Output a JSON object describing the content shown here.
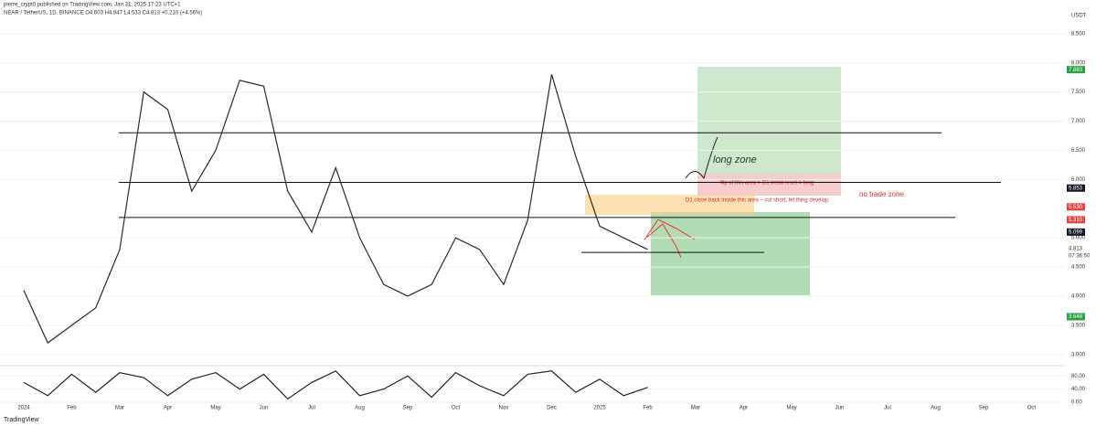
{
  "header": {
    "publisher": "pierre_crypt0 published on TradingView.com, Jan 31, 2025 17:23 UTC+1",
    "symbol": "NEAR / TetherUS, 1D, BINANCE  O4.603  H4.847  L4.533  C4.813  +0.210 (+4.56%)"
  },
  "footer": "TradingView",
  "chart_data": [
    {
      "type": "line",
      "currency": "USDT",
      "countdown": "07:36:50",
      "categories": [
        "2024",
        null,
        "Feb",
        null,
        "Mar",
        null,
        "Apr",
        null,
        "May",
        null,
        "Jun",
        null,
        "Jul",
        null,
        "Aug",
        null,
        "Sep",
        null,
        "Oct",
        null,
        "Nov",
        null,
        "Dec",
        null,
        "2025",
        null,
        "Feb",
        null,
        "Mar",
        null,
        "Apr",
        null,
        "May",
        null,
        "Jun",
        null,
        "Jul",
        null,
        "Aug",
        null,
        "Sep",
        null,
        "Oct",
        null
      ],
      "values": [
        4.1,
        3.2,
        3.5,
        3.8,
        4.8,
        7.5,
        7.2,
        5.8,
        6.5,
        7.7,
        7.6,
        5.8,
        5.1,
        6.2,
        5.0,
        4.2,
        4.0,
        4.2,
        5.0,
        4.8,
        4.2,
        5.3,
        7.8,
        6.4,
        5.2,
        5.0,
        4.8,
        null,
        null,
        null,
        null,
        null,
        null,
        null,
        null,
        null,
        null,
        null,
        null,
        null,
        null,
        null,
        null,
        null
      ],
      "color": "#2b2b2b",
      "ylim": [
        2.84,
        8.92
      ],
      "yticks": [
        {
          "value": 3.0,
          "label": "3.000"
        },
        {
          "value": 3.5,
          "label": "3.500"
        },
        {
          "value": 4.0,
          "label": "4.000"
        },
        {
          "value": 4.5,
          "label": "4.500"
        },
        {
          "value": 5.0,
          "label": "5.000"
        },
        {
          "value": 6.0,
          "label": "6.000"
        },
        {
          "value": 6.5,
          "label": "6.500"
        },
        {
          "value": 7.0,
          "label": "7.000"
        },
        {
          "value": 7.5,
          "label": "7.500"
        },
        {
          "value": 8.0,
          "label": "8.000"
        },
        {
          "value": 8.5,
          "label": "8.500"
        }
      ],
      "levels": [
        6.8,
        5.95,
        5.35,
        4.75
      ],
      "price_labels": [
        {
          "value": 7.883,
          "label": "7.883",
          "color": "#2e9e45"
        },
        {
          "value": 5.853,
          "label": "5.853",
          "color": "#131722"
        },
        {
          "value": 5.53,
          "label": "5.530",
          "color": "#e04848"
        },
        {
          "value": 5.31,
          "label": "5.310",
          "color": "#e04848"
        },
        {
          "value": 5.099,
          "label": "5.099",
          "color": "#131722"
        },
        {
          "value": 4.813,
          "label": "4.813",
          "color": "#ffffff"
        },
        {
          "value": 3.648,
          "label": "3.648",
          "color": "#2e9e45"
        }
      ],
      "annotations": [
        "long zone",
        "flip of this area > D1 trend reset = long",
        "D1 close back inside this area – cut short, let thing develop",
        "no trade zone"
      ]
    },
    {
      "type": "line",
      "values": [
        60,
        20,
        85,
        30,
        90,
        75,
        20,
        70,
        90,
        40,
        85,
        10,
        60,
        95,
        20,
        40,
        80,
        15,
        90,
        50,
        20,
        85,
        95,
        30,
        70,
        20,
        45,
        null,
        null,
        null,
        null,
        null,
        null,
        null,
        null,
        null,
        null,
        null,
        null,
        null,
        null,
        null,
        null,
        null
      ],
      "color": "#222222",
      "ylim": [
        0,
        100
      ],
      "yticks": [
        {
          "value": 0,
          "label": "0.00"
        },
        {
          "value": 40,
          "label": "40.00"
        },
        {
          "value": 80,
          "label": "80.00"
        }
      ]
    }
  ]
}
